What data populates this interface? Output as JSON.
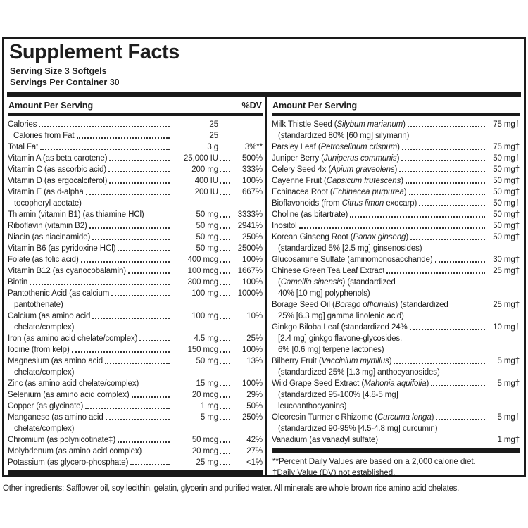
{
  "label": {
    "title": "Supplement Facts",
    "serving_size": "Serving Size 3 Softgels",
    "servings_per_container": "Servings Per Container 30",
    "left_column": {
      "header": "Amount Per Serving",
      "dv_header": "%DV",
      "rows": [
        {
          "name": "Calories",
          "amount": "25",
          "dv": ""
        },
        {
          "name": "Calories from Fat",
          "amount": "25",
          "dv": "",
          "indent": true
        },
        {
          "name": "Total Fat",
          "amount": "3 g",
          "dv": "3%**",
          "d2": false
        },
        {
          "name": "Vitamin A (as beta carotene)",
          "amount": "25,000 IU",
          "dv": "500%"
        },
        {
          "name": "Vitamin C (as ascorbic acid)",
          "amount": "200 mg",
          "dv": "333%"
        },
        {
          "name": "Vitamin D (as ergocalciferol)",
          "amount": "400 IU",
          "dv": "100%"
        },
        {
          "name": "Vitamin E (as d-alpha",
          "amount": "200 IU",
          "dv": "667%",
          "cont": [
            "tocopheryl acetate)"
          ]
        },
        {
          "name": "Thiamin (vitamin B1) (as thiamine HCl)",
          "amount": "50 mg",
          "dv": "3333%",
          "d1": false
        },
        {
          "name": "Riboflavin (vitamin B2)",
          "amount": "50 mg",
          "dv": "2941%"
        },
        {
          "name": "Niacin (as niacinamide)",
          "amount": "50 mg",
          "dv": "250%"
        },
        {
          "name": "Vitamin B6 (as pyridoxine HCl)",
          "amount": "50 mg",
          "dv": "2500%"
        },
        {
          "name": "Folate (as folic acid)",
          "amount": "400 mcg",
          "dv": "100%"
        },
        {
          "name": "Vitamin B12 (as cyanocobalamin)",
          "amount": "100 mcg",
          "dv": "1667%"
        },
        {
          "name": "Biotin",
          "amount": "300 mcg",
          "dv": "100%"
        },
        {
          "name": "Pantothenic Acid (as calcium",
          "amount": "100 mg",
          "dv": "1000%",
          "cont": [
            "pantothenate)"
          ]
        },
        {
          "name": "Calcium (as amino acid",
          "amount": "100 mg",
          "dv": "10%",
          "cont": [
            "chelate/complex)"
          ]
        },
        {
          "name": "Iron (as amino acid chelate/complex)",
          "amount": "4.5 mg",
          "dv": "25%"
        },
        {
          "name": "Iodine (from kelp)",
          "amount": "150 mcg",
          "dv": "100%"
        },
        {
          "name": "Magnesium (as amino acid",
          "amount": "50 mg",
          "dv": "13%",
          "cont": [
            "chelate/complex)"
          ]
        },
        {
          "name": "Zinc (as amino acid chelate/complex)",
          "amount": "15 mg",
          "dv": "100%",
          "d1": false
        },
        {
          "name": "Selenium (as amino acid complex)",
          "amount": "20 mcg",
          "dv": "29%"
        },
        {
          "name": "Copper (as glycinate)",
          "amount": "1 mg",
          "dv": "50%"
        },
        {
          "name": "Manganese (as amino acid",
          "amount": "5 mg",
          "dv": "250%",
          "cont": [
            "chelate/complex)"
          ]
        },
        {
          "name": "Chromium (as polynicotinate‡)",
          "amount": "50 mcg",
          "dv": "42%"
        },
        {
          "name": "Molybdenum (as amino acid complex)",
          "amount": "20 mcg",
          "dv": "27%",
          "d1": false
        },
        {
          "name": "Potassium (as glycero-phosphate)",
          "amount": "25 mg",
          "dv": "<1%"
        }
      ]
    },
    "right_column": {
      "header": "Amount Per Serving",
      "rows": [
        {
          "name": "Milk Thistle Seed (*Silybum marianum*)",
          "amount": "75 mg†",
          "cont": [
            "(standardized 80% [60 mg] silymarin)"
          ]
        },
        {
          "name": "Parsley Leaf (*Petroselinum crispum*)",
          "amount": "75 mg†"
        },
        {
          "name": "Juniper Berry (*Juniperus communis*)",
          "amount": "50 mg†"
        },
        {
          "name": "Celery Seed 4x (*Apium graveolens*)",
          "amount": "50 mg†"
        },
        {
          "name": "Cayenne Fruit (*Capsicum frutescens*)",
          "amount": "50 mg†"
        },
        {
          "name": "Echinacea Root (*Echinacea purpurea*)",
          "amount": "50 mg†"
        },
        {
          "name": "Bioflavonoids (from *Citrus limon* exocarp)",
          "amount": "50 mg†"
        },
        {
          "name": "Choline (as bitartrate)",
          "amount": "50 mg†"
        },
        {
          "name": "Inositol",
          "amount": "50 mg†"
        },
        {
          "name": "Korean Ginseng Root (*Panax ginseng*)",
          "amount": "50 mg†",
          "cont": [
            "(standardized 5% [2.5 mg] ginsenosides)"
          ]
        },
        {
          "name": "Glucosamine Sulfate (aminomonosaccharide)",
          "amount": "30 mg†"
        },
        {
          "name": "Chinese Green Tea Leaf Extract",
          "amount": "25 mg†",
          "cont": [
            "(*Camellia sinensis*) (standardized",
            "40% [10 mg] polyphenols)"
          ]
        },
        {
          "name": "Borage Seed Oil (*Borago officinalis*) (standardized",
          "amount": "25 mg†",
          "d1": false,
          "cont": [
            "25% [6.3 mg] gamma linolenic acid)"
          ]
        },
        {
          "name": "Ginkgo Biloba Leaf (standardized 24%",
          "amount": "10 mg†",
          "cont": [
            "[2.4 mg] ginkgo flavone-glycosides,",
            "6% [0.6 mg] terpene lactones)"
          ]
        },
        {
          "name": "Bilberry Fruit (*Vaccinium myrtillus*)",
          "amount": "5 mg†",
          "cont": [
            "(standardized 25% [1.3 mg] anthocyanosides)"
          ]
        },
        {
          "name": "Wild Grape Seed Extract (*Mahonia aquifolia*)",
          "amount": "5 mg†",
          "cont": [
            "(standardized 95-100% [4.8-5 mg]",
            "leucoanthocyanins)"
          ]
        },
        {
          "name": "Oleoresin Turmeric Rhizome (*Curcuma longa*)",
          "amount": "5 mg†",
          "cont": [
            "(standardized 90-95% [4.5-4.8 mg] curcumin)"
          ]
        },
        {
          "name": "Vanadium (as vanadyl sulfate)",
          "amount": "1 mg†",
          "d1": false
        }
      ],
      "footnotes": [
        "**Percent Daily Values are based on a 2,000 calorie diet.",
        "†Daily Value (DV) not established."
      ]
    }
  },
  "other_ingredients": "Other ingredients: Safflower oil, soy lecithin, gelatin, glycerin and purified water. All minerals are whole brown rice amino acid chelates.",
  "colors": {
    "ink": "#1a1a1a",
    "background": "#ffffff"
  }
}
